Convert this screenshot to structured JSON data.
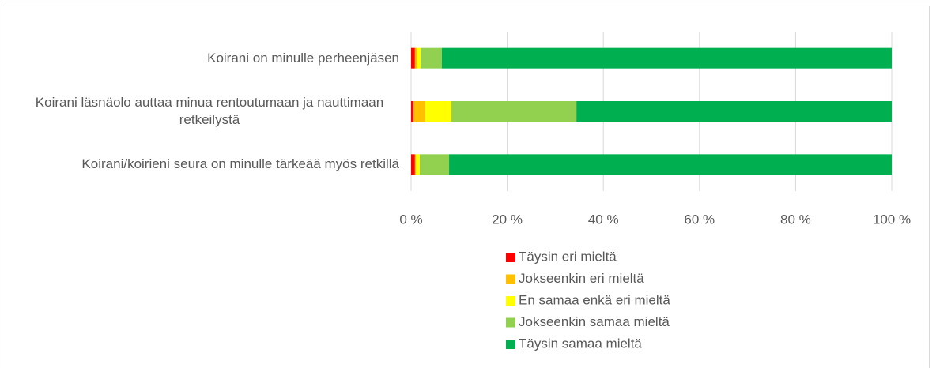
{
  "chart_data": {
    "type": "stacked_barh",
    "categories": [
      "Koirani on minulle perheenjäsen",
      "Koirani läsnäolo auttaa minua rentoutumaan ja nauttimaan retkeilystä",
      "Koirani/koirieni seura on minulle tärkeää myös retkillä"
    ],
    "series": [
      {
        "name": "Täysin eri mieltä",
        "color": "#ff0000",
        "values": [
          0.8,
          0.5,
          0.8
        ]
      },
      {
        "name": "Jokseenkin eri mieltä",
        "color": "#ffc000",
        "values": [
          0.4,
          2.5,
          0.2
        ]
      },
      {
        "name": "En samaa enkä eri mieltä",
        "color": "#ffff00",
        "values": [
          0.8,
          5.4,
          0.8
        ]
      },
      {
        "name": "Jokseenkin samaa mieltä",
        "color": "#92d050",
        "values": [
          4.4,
          26,
          6.1
        ]
      },
      {
        "name": "Täysin samaa mieltä",
        "color": "#00b050",
        "values": [
          93.6,
          65.6,
          92.1
        ]
      }
    ],
    "xlim": [
      0,
      100
    ],
    "xticks": [
      {
        "value": 0,
        "label": "0 %"
      },
      {
        "value": 20,
        "label": "20 %"
      },
      {
        "value": 40,
        "label": "40 %"
      },
      {
        "value": 60,
        "label": "60 %"
      },
      {
        "value": 80,
        "label": "80 %"
      },
      {
        "value": 100,
        "label": "100 %"
      }
    ],
    "grid": true,
    "legend": "bottom"
  }
}
